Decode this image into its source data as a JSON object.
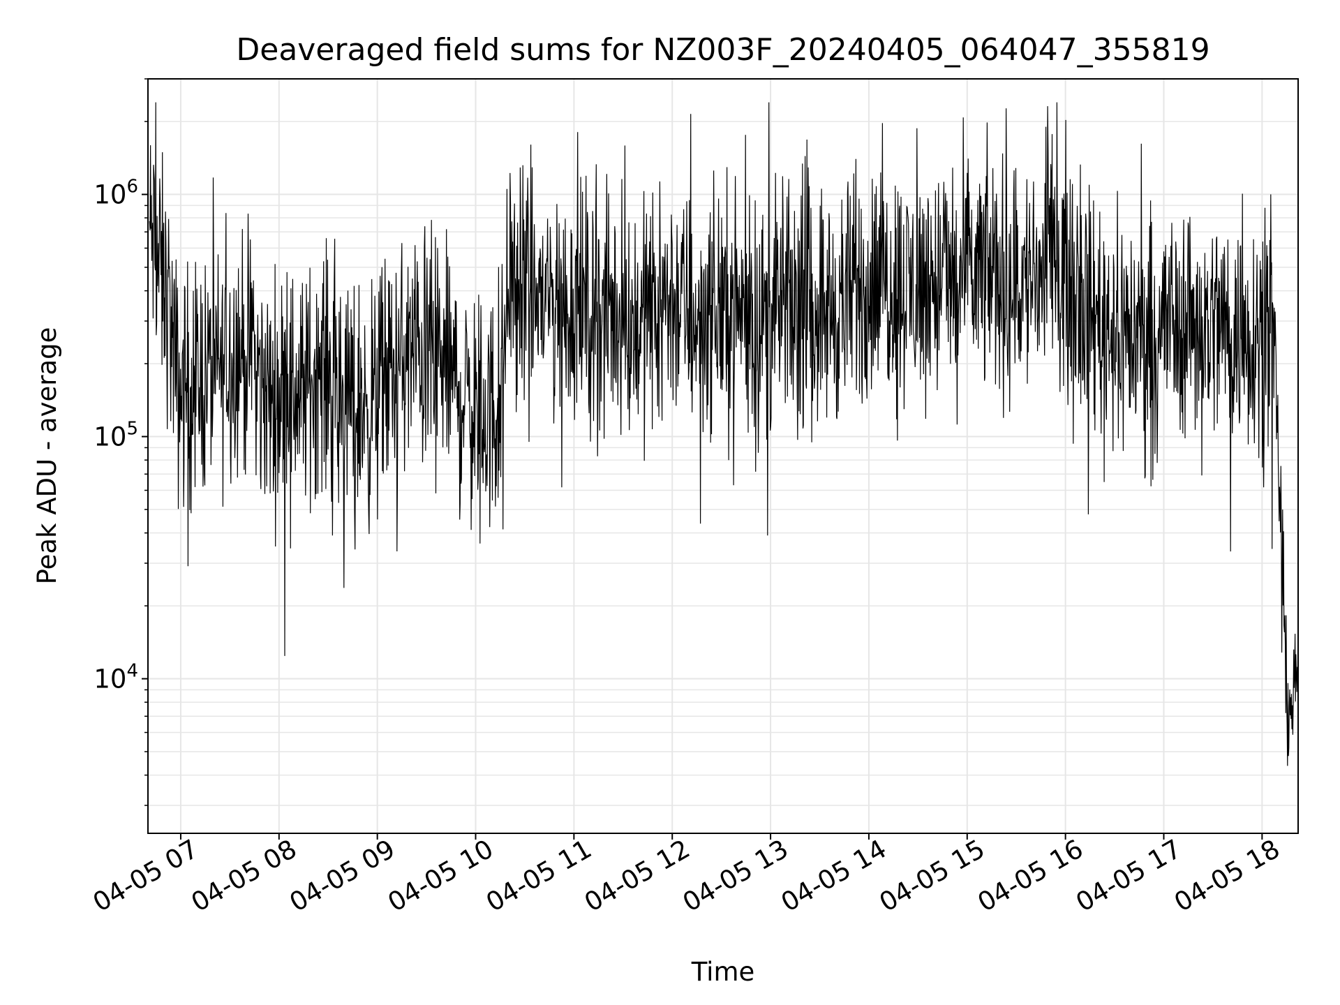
{
  "chart_data": {
    "type": "line",
    "title": "Deaveraged field sums for NZ003F_20240405_064047_355819",
    "xlabel": "Time",
    "ylabel": "Peak ADU - average",
    "xscale": "time",
    "yscale": "log",
    "xlim": [
      "2024-04-05 06:40",
      "2024-04-05 18:22"
    ],
    "ylim": [
      2300,
      3000000
    ],
    "grid": true,
    "line_color": "#000000",
    "grid_color": "#e6e6e6",
    "x_ticks": [
      "04-05 07",
      "04-05 08",
      "04-05 09",
      "04-05 10",
      "04-05 11",
      "04-05 12",
      "04-05 13",
      "04-05 14",
      "04-05 15",
      "04-05 16",
      "04-05 17",
      "04-05 18"
    ],
    "y_ticks": [
      {
        "value": 10000,
        "base": "10",
        "exp": "4"
      },
      {
        "value": 100000,
        "base": "10",
        "exp": "5"
      },
      {
        "value": 1000000,
        "base": "10",
        "exp": "6"
      }
    ],
    "series": [
      {
        "x": [
          "06:41",
          "06:44",
          "06:47",
          "06:50",
          "06:53",
          "06:56",
          "06:59",
          "07:05",
          "07:15",
          "07:25",
          "07:35",
          "07:45",
          "07:55",
          "08:05",
          "08:15",
          "08:25",
          "08:35",
          "08:45",
          "08:55",
          "09:05",
          "09:15",
          "09:25",
          "09:35",
          "09:45",
          "09:55",
          "10:05",
          "10:15",
          "10:20",
          "10:25",
          "10:35",
          "10:45",
          "10:55",
          "11:05",
          "11:15",
          "11:25",
          "11:35",
          "11:45",
          "11:55",
          "12:05",
          "12:15",
          "12:25",
          "12:35",
          "12:45",
          "12:55",
          "13:05",
          "13:15",
          "13:25",
          "13:35",
          "13:45",
          "13:55",
          "14:05",
          "14:15",
          "14:25",
          "14:35",
          "14:45",
          "14:55",
          "15:05",
          "15:15",
          "15:25",
          "15:35",
          "15:45",
          "15:55",
          "16:05",
          "16:15",
          "16:25",
          "16:35",
          "16:45",
          "16:55",
          "17:05",
          "17:15",
          "17:25",
          "17:35",
          "17:45",
          "17:55",
          "18:02",
          "18:07",
          "18:10",
          "18:12",
          "18:14",
          "18:16",
          "18:18",
          "18:20",
          "18:22"
        ],
        "y": [
          700000,
          600000,
          500000,
          400000,
          350000,
          200000,
          150000,
          170000,
          180000,
          190000,
          230000,
          200000,
          140000,
          160000,
          150000,
          200000,
          160000,
          140000,
          130000,
          170000,
          200000,
          230000,
          220000,
          180000,
          140000,
          120000,
          130000,
          500000,
          400000,
          380000,
          360000,
          340000,
          350000,
          300000,
          320000,
          280000,
          330000,
          380000,
          350000,
          300000,
          340000,
          350000,
          330000,
          300000,
          330000,
          350000,
          380000,
          330000,
          350000,
          400000,
          420000,
          450000,
          400000,
          420000,
          450000,
          430000,
          460000,
          480000,
          420000,
          430000,
          460000,
          550000,
          500000,
          330000,
          300000,
          280000,
          250000,
          280000,
          300000,
          320000,
          280000,
          300000,
          260000,
          270000,
          300000,
          250000,
          80000,
          40000,
          12000,
          8000,
          8000,
          9000,
          12000
        ]
      }
    ]
  }
}
